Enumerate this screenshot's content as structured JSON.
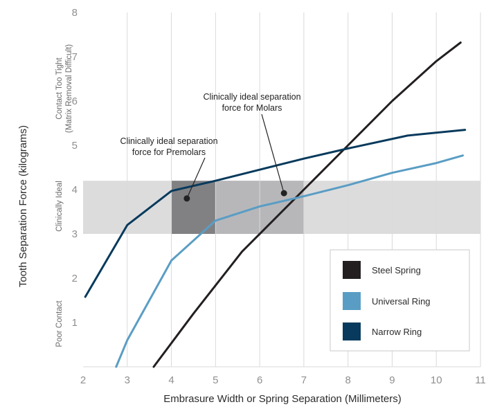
{
  "chart_data": {
    "type": "line",
    "xlabel": "Embrasure Width or Spring Separation (Millimeters)",
    "ylabel": "Tooth Separation Force (kilograms)",
    "xlim": [
      2,
      11
    ],
    "ylim": [
      0,
      8
    ],
    "x_ticks": [
      "2",
      "3",
      "4",
      "5",
      "6",
      "7",
      "8",
      "9",
      "10",
      "11"
    ],
    "y_ticks": [
      "1",
      "2",
      "3",
      "4",
      "5",
      "6",
      "7",
      "8"
    ],
    "grid": {
      "vertical": true,
      "horizontal": false
    },
    "ideal_band": {
      "y": [
        3.0,
        4.2
      ]
    },
    "premolar_zone": {
      "x": [
        4,
        5
      ],
      "y": [
        3.0,
        4.2
      ]
    },
    "molar_zone": {
      "x": [
        5,
        7
      ],
      "y": [
        3.0,
        4.2
      ]
    },
    "zone_labels": {
      "poor": "Poor Contact",
      "ideal": "Clinically Ideal",
      "tight_line1": "Contact Too Tight",
      "tight_line2": "(Matrix Removal Difficult)"
    },
    "annotations": [
      {
        "lines": [
          "Clinically ideal separation",
          "force for Premolars"
        ],
        "point": [
          4.35,
          3.8
        ]
      },
      {
        "lines": [
          "Clinically ideal separation",
          "force for Molars"
        ],
        "point": [
          6.55,
          3.92
        ]
      }
    ],
    "legend": {
      "position": "bottom-right"
    },
    "series": [
      {
        "name": "Steel Spring",
        "color": "#231f20",
        "x": [
          3.6,
          4.5,
          5.6,
          7.0,
          8.0,
          9.0,
          10.0,
          10.55
        ],
        "y": [
          0.0,
          1.2,
          2.6,
          4.0,
          5.0,
          6.0,
          6.9,
          7.32
        ]
      },
      {
        "name": "Universal Ring",
        "color": "#5a9dc4",
        "x": [
          2.75,
          3.0,
          4.0,
          5.0,
          6.0,
          7.0,
          8.0,
          9.0,
          10.0,
          10.6
        ],
        "y": [
          0.0,
          0.6,
          2.4,
          3.3,
          3.62,
          3.85,
          4.1,
          4.38,
          4.6,
          4.77
        ]
      },
      {
        "name": "Narrow Ring",
        "color": "#073a5c",
        "x": [
          2.05,
          3.0,
          4.0,
          5.0,
          6.0,
          7.0,
          8.0,
          9.35,
          10.65
        ],
        "y": [
          1.58,
          3.2,
          3.97,
          4.2,
          4.45,
          4.7,
          4.93,
          5.22,
          5.35
        ]
      }
    ]
  }
}
